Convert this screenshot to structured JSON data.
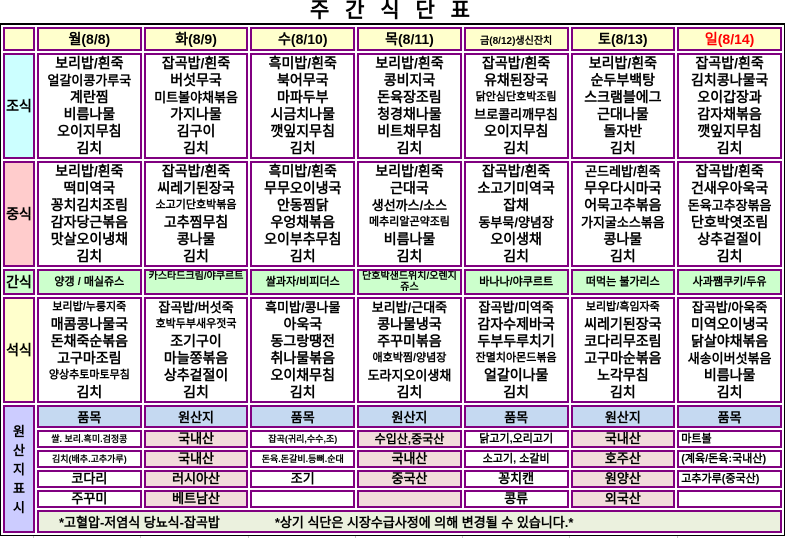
{
  "title": "주 간 식 단 표",
  "colors": {
    "border": "#800080",
    "frame": "#000000",
    "header_bg": "#FFFFCC",
    "breakfast_bg": "#CCFFFF",
    "lunch_bg": "#FFCCCC",
    "snack_bg": "#CCFFCC",
    "dinner_bg": "#FFFFCC",
    "origin_label_bg": "#CCCCFF",
    "origin_header_bg": "#C5D9F1",
    "origin_value_bg": "#F2DCDB",
    "note_bg": "#EBF1DE",
    "sunday_text": "#FF0000",
    "weekday_text": "#000000"
  },
  "days": [
    {
      "label": "월(8/8)",
      "color": "#000000"
    },
    {
      "label": "화(8/9)",
      "color": "#000000"
    },
    {
      "label": "수(8/10)",
      "color": "#000000"
    },
    {
      "label": "목(8/11)",
      "color": "#000000"
    },
    {
      "label": "금(8/12)생신잔치",
      "color": "#000000"
    },
    {
      "label": "토(8/13)",
      "color": "#000000"
    },
    {
      "label": "일(8/14)",
      "color": "#FF0000"
    }
  ],
  "meals": [
    {
      "id": "breakfast",
      "label": "조식",
      "bg": "#CCFFFF",
      "items": [
        [
          "보리밥/흰죽",
          "얼갈이콩가루국",
          "계란찜",
          "비름나물",
          "오이지무침",
          "김치"
        ],
        [
          "잡곡밥/흰죽",
          "버섯무국",
          "미트볼야채볶음",
          "가지나물",
          "김구이",
          "김치"
        ],
        [
          "흑미밥/흰죽",
          "북어무국",
          "마파두부",
          "시금치나물",
          "깻잎지무침",
          "김치"
        ],
        [
          "보리밥/흰죽",
          "콩비지국",
          "돈육장조림",
          "청경채나물",
          "비트채무침",
          "김치"
        ],
        [
          "잡곡밥/흰죽",
          "유채된장국",
          "닭안심단호박조림",
          "브로콜리깨무침",
          "오이지무침",
          "김치"
        ],
        [
          "보리밥/흰죽",
          "순두부백탕",
          "스크램블에그",
          "근대나물",
          "돌자반",
          "김치"
        ],
        [
          "잡곡밥/흰죽",
          "김치콩나물국",
          "오이갑장과",
          "감자채볶음",
          "깻잎지무침",
          "김치"
        ]
      ]
    },
    {
      "id": "lunch",
      "label": "중식",
      "bg": "#FFCCCC",
      "items": [
        [
          "보리밥/흰죽",
          "떡미역국",
          "꽁치김치조림",
          "감자당근볶음",
          "맛살오이냉채",
          "김치"
        ],
        [
          "잡곡밥/흰죽",
          "씨레기된장국",
          "소고기단호박볶음",
          "고추찜무침",
          "콩나물",
          "김치"
        ],
        [
          "흑미밥/흰죽",
          "무무오이냉국",
          "안동찜닭",
          "우엉채볶음",
          "오이부추무침",
          "김치"
        ],
        [
          "보리밥/흰죽",
          "근대국",
          "생선까스/소스",
          "메추리알곤약조림",
          "비름나물",
          "김치"
        ],
        [
          "잡곡밥/흰죽",
          "소고기미역국",
          "잡채",
          "동부묵/양념장",
          "오이생채",
          "김치"
        ],
        [
          "곤드레밥/흰죽",
          "무우다시마국",
          "어묵고추볶음",
          "가지굴소스볶음",
          "콩나물",
          "김치"
        ],
        [
          "잡곡밥/흰죽",
          "건새우아욱국",
          "돈육고추장볶음",
          "단호박엿조림",
          "상추겉절이",
          "김치"
        ]
      ]
    },
    {
      "id": "snack",
      "label": "간식",
      "bg": "#CCFFCC",
      "items": [
        [
          "양갱 / 매실쥬스"
        ],
        [
          "카스타드크림/야쿠르트"
        ],
        [
          "쌀과자/비피더스"
        ],
        [
          "단호박샌드위치/오렌지쥬스"
        ],
        [
          "바나나/야쿠르트"
        ],
        [
          "떠먹는 불가리스"
        ],
        [
          "사과쨈쿠키/두유"
        ]
      ]
    },
    {
      "id": "dinner",
      "label": "석식",
      "bg": "#FFFFCC",
      "items": [
        [
          "보리밥/누룽지죽",
          "매콤콩나물국",
          "돈채죽순볶음",
          "고구마조림",
          "양상추토마토무침",
          "김치"
        ],
        [
          "잡곡밥/버섯죽",
          "호박두부새우젓국",
          "조기구이",
          "마늘쫑볶음",
          "상추겉절이",
          "김치"
        ],
        [
          "흑미밥/콩나물",
          "아욱국",
          "동그랑땡전",
          "취나물볶음",
          "오이채무침",
          "김치"
        ],
        [
          "보리밥/근대죽",
          "콩나물냉국",
          "주꾸미볶음",
          "애호박찜/양념장",
          "도라지오이생채",
          "김치"
        ],
        [
          "잡곡밥/미역죽",
          "감자수제바국",
          "두부두루치기",
          "잔멸치아몬드볶음",
          "얼갈이나물",
          "김치"
        ],
        [
          "보리밥/흑임자죽",
          "씨레기된장국",
          "코다리무조림",
          "고구마순볶음",
          "노각무침",
          "김치"
        ],
        [
          "잡곡밥/아욱죽",
          "미역오이냉국",
          "닭살야채볶음",
          "새송이버섯볶음",
          "비름나물",
          "김치"
        ]
      ]
    }
  ],
  "origin": {
    "label": "원산지표시",
    "columns": [
      {
        "header": "품목",
        "type": "item",
        "rows": [
          "쌀. 보리.흑미.검정콩",
          "김치(배추.고추가루)",
          "코다리",
          "주꾸미"
        ]
      },
      {
        "header": "원산지",
        "type": "origin",
        "rows": [
          "국내산",
          "국내산",
          "러시아산",
          "베트남산"
        ]
      },
      {
        "header": "품목",
        "type": "item",
        "rows": [
          "잡곡(귀리,수수,조)",
          "돈육.돈갈비.등뼈.순대",
          "조기",
          ""
        ]
      },
      {
        "header": "원산지",
        "type": "origin",
        "rows": [
          "수입산,중국산",
          "국내산",
          "중국산",
          ""
        ]
      },
      {
        "header": "품목",
        "type": "item",
        "rows": [
          "닭고기,오리고기",
          "소고기, 소갈비",
          "꽁치캔",
          "콩류"
        ]
      },
      {
        "header": "원산지",
        "type": "origin",
        "rows": [
          "국내산",
          "호주산",
          "원양산",
          "외국산"
        ]
      },
      {
        "header": "품목",
        "type": "item",
        "align": "left",
        "rows": [
          "마트볼",
          "(계육/돈육:국내산)",
          "고추가루(중국산)",
          ""
        ]
      }
    ],
    "notes": [
      "*고혈압-저염식   당뇨식-잡곡밥",
      "*상기 식단은 시장수급사정에 의해  변경될 수 있습니다.*"
    ]
  }
}
